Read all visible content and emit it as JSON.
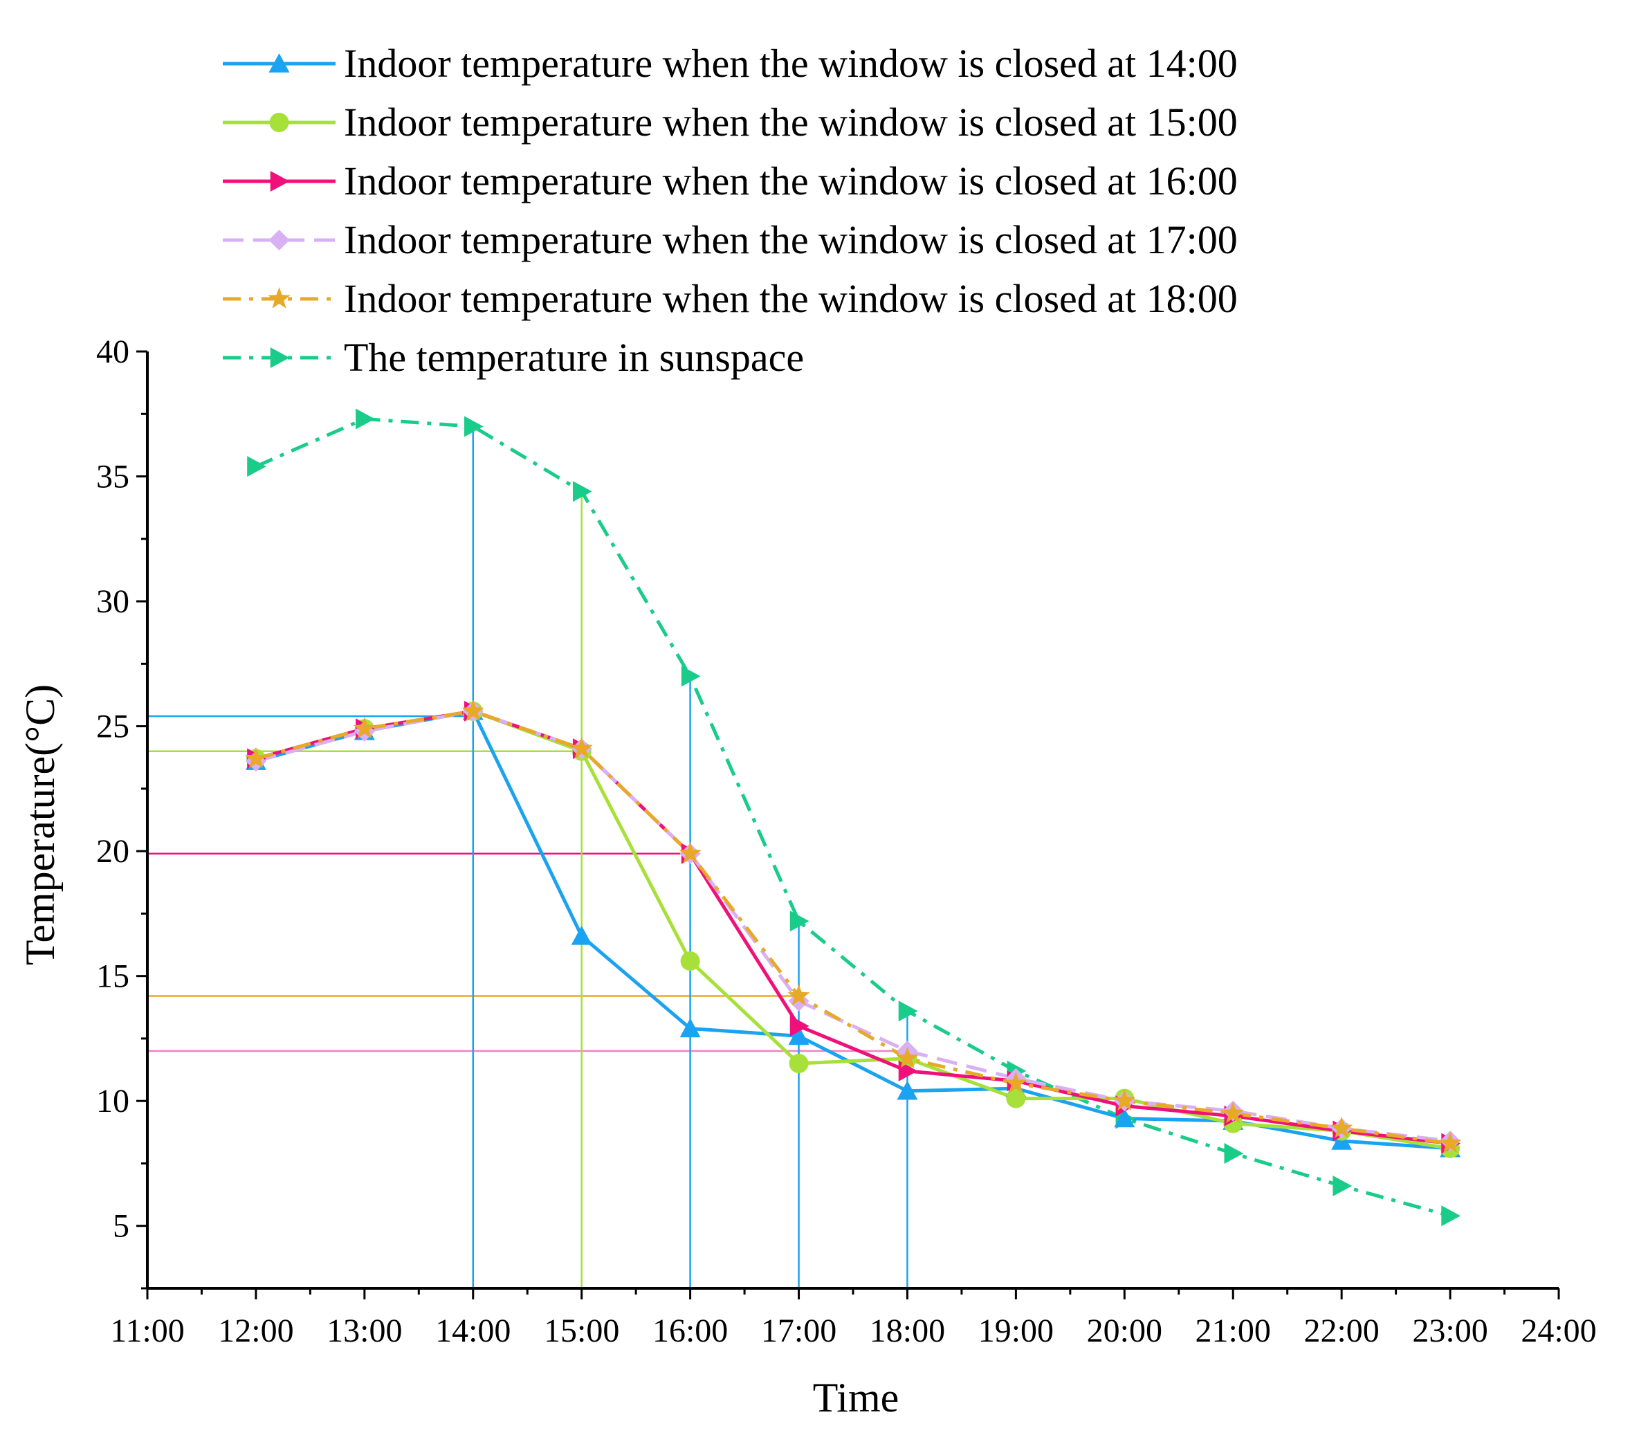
{
  "chart_data": {
    "type": "line",
    "title": "",
    "xlabel": "Time",
    "ylabel": "Temperature(°C)",
    "xlim": [
      11,
      24
    ],
    "ylim": [
      2.5,
      40
    ],
    "xticks": [
      {
        "value": 11,
        "label": "11:00"
      },
      {
        "value": 12,
        "label": "12:00"
      },
      {
        "value": 13,
        "label": "13:00"
      },
      {
        "value": 14,
        "label": "14:00"
      },
      {
        "value": 15,
        "label": "15:00"
      },
      {
        "value": 16,
        "label": "16:00"
      },
      {
        "value": 17,
        "label": "17:00"
      },
      {
        "value": 18,
        "label": "18:00"
      },
      {
        "value": 19,
        "label": "19:00"
      },
      {
        "value": 20,
        "label": "20:00"
      },
      {
        "value": 21,
        "label": "21:00"
      },
      {
        "value": 22,
        "label": "22:00"
      },
      {
        "value": 23,
        "label": "23:00"
      },
      {
        "value": 24,
        "label": "24:00"
      }
    ],
    "yticks": [
      {
        "value": 5,
        "label": "5"
      },
      {
        "value": 10,
        "label": "10"
      },
      {
        "value": 15,
        "label": "15"
      },
      {
        "value": 20,
        "label": "20"
      },
      {
        "value": 25,
        "label": "25"
      },
      {
        "value": 30,
        "label": "30"
      },
      {
        "value": 35,
        "label": "35"
      },
      {
        "value": 40,
        "label": "40"
      }
    ],
    "grid": false,
    "legend_position": "top",
    "x": [
      12,
      13,
      14,
      15,
      16,
      17,
      18,
      19,
      20,
      21,
      22,
      23
    ],
    "series": [
      {
        "name": "Indoor temperature when the window is closed at 14:00",
        "color": "#1aa3f0",
        "marker": "triangle-up",
        "dash": "solid",
        "values": [
          23.6,
          24.8,
          25.6,
          16.6,
          12.9,
          12.6,
          10.4,
          10.5,
          9.3,
          9.2,
          8.4,
          8.1
        ]
      },
      {
        "name": "Indoor temperature when the window is closed at 15:00",
        "color": "#a8e03a",
        "marker": "circle",
        "dash": "solid",
        "values": [
          23.7,
          24.9,
          25.6,
          24.0,
          15.6,
          11.5,
          11.7,
          10.1,
          10.1,
          9.1,
          8.8,
          8.1
        ]
      },
      {
        "name": "Indoor temperature when the window is closed at 16:00",
        "color": "#f0107a",
        "marker": "triangle-right",
        "dash": "solid",
        "values": [
          23.7,
          24.9,
          25.6,
          24.1,
          19.9,
          13.0,
          11.2,
          10.8,
          9.8,
          9.4,
          8.8,
          8.3
        ]
      },
      {
        "name": "Indoor temperature when the window is closed at 17:00",
        "color": "#d9b0f3",
        "marker": "diamond",
        "dash": "dash",
        "values": [
          23.6,
          24.8,
          25.6,
          24.1,
          19.9,
          14.0,
          12.0,
          10.9,
          10.0,
          9.6,
          8.9,
          8.4
        ]
      },
      {
        "name": "Indoor temperature when the window is closed at 18:00",
        "color": "#e8a828",
        "marker": "star",
        "dash": "dashdot",
        "values": [
          23.7,
          24.9,
          25.6,
          24.1,
          19.9,
          14.2,
          11.7,
          10.7,
          10.0,
          9.5,
          8.9,
          8.3
        ]
      },
      {
        "name": "The temperature in sunspace",
        "color": "#19cc8a",
        "marker": "triangle-right",
        "dash": "dashdot",
        "values": [
          35.4,
          37.3,
          37.0,
          34.4,
          27.0,
          17.2,
          13.6,
          11.2,
          9.3,
          7.9,
          6.6,
          5.4
        ]
      }
    ],
    "reference_lines": {
      "horizontal": [
        {
          "y": 25.4,
          "x_to": 14,
          "color": "#1aa3f0"
        },
        {
          "y": 24.0,
          "x_to": 15,
          "color": "#a8e03a"
        },
        {
          "y": 19.9,
          "x_to": 16,
          "color": "#f0107a"
        },
        {
          "y": 14.2,
          "x_to": 17,
          "color": "#e8a828"
        },
        {
          "y": 12.0,
          "x_to": 18,
          "color": "#f080c8"
        }
      ],
      "vertical": [
        {
          "x": 14,
          "y_to": 37.0,
          "color": "#1aa3f0"
        },
        {
          "x": 15,
          "y_to": 34.4,
          "color": "#a8e03a"
        },
        {
          "x": 16,
          "y_to": 27.0,
          "color": "#1aa3f0"
        },
        {
          "x": 17,
          "y_to": 17.2,
          "color": "#1aa3f0"
        },
        {
          "x": 18,
          "y_to": 13.6,
          "color": "#1aa3f0"
        }
      ]
    }
  }
}
